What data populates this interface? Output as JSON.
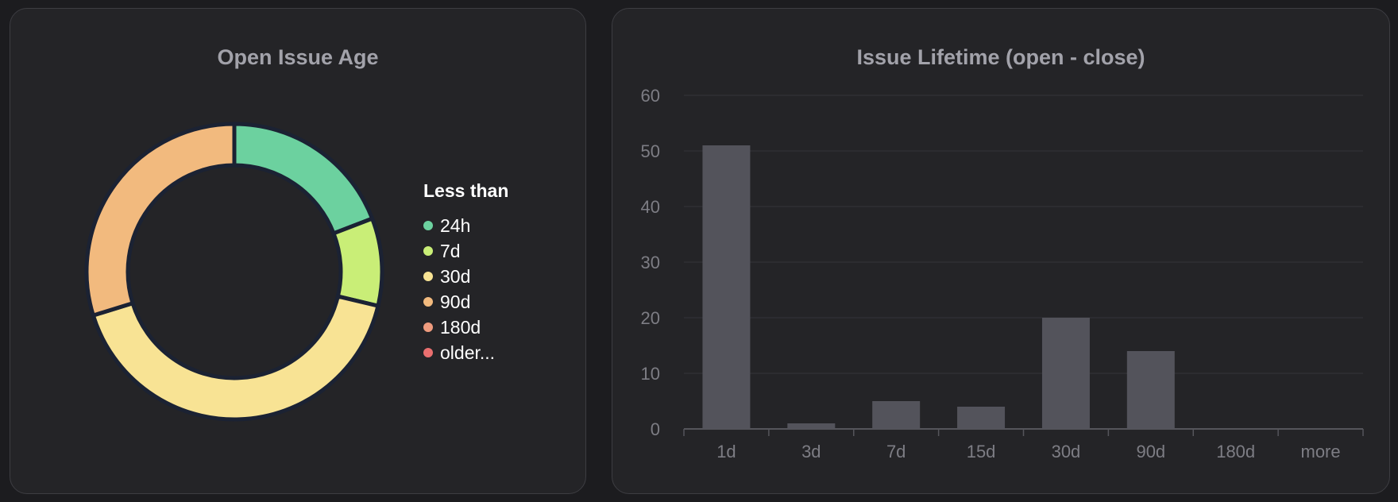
{
  "colors": {
    "background": "#1c1c1f",
    "panel": "#242427",
    "donut_border": "#1b2233",
    "bar": "#53535b",
    "grid": "#323236",
    "axis": "#55555b"
  },
  "chart_data": [
    {
      "type": "pie",
      "variant": "doughnut",
      "title": "Open Issue Age",
      "legend_title": "Less than",
      "legend_position": "right",
      "labels": [
        "24h",
        "7d",
        "30d",
        "90d",
        "180d",
        "older..."
      ],
      "values": [
        9,
        4.5,
        19.5,
        14,
        0,
        0
      ],
      "colors": [
        "#6cd19f",
        "#c9ee77",
        "#f8e394",
        "#f2ba7e",
        "#ef9b7e",
        "#ea6f6f"
      ]
    },
    {
      "type": "bar",
      "title": "Issue Lifetime (open - close)",
      "categories": [
        "1d",
        "3d",
        "7d",
        "15d",
        "30d",
        "90d",
        "180d",
        "more"
      ],
      "values": [
        51,
        1,
        5,
        4,
        20,
        14,
        0,
        0
      ],
      "ylim": [
        0,
        60
      ],
      "yticks": [
        0,
        10,
        20,
        30,
        40,
        50,
        60
      ],
      "grid": true,
      "legend": false
    }
  ]
}
